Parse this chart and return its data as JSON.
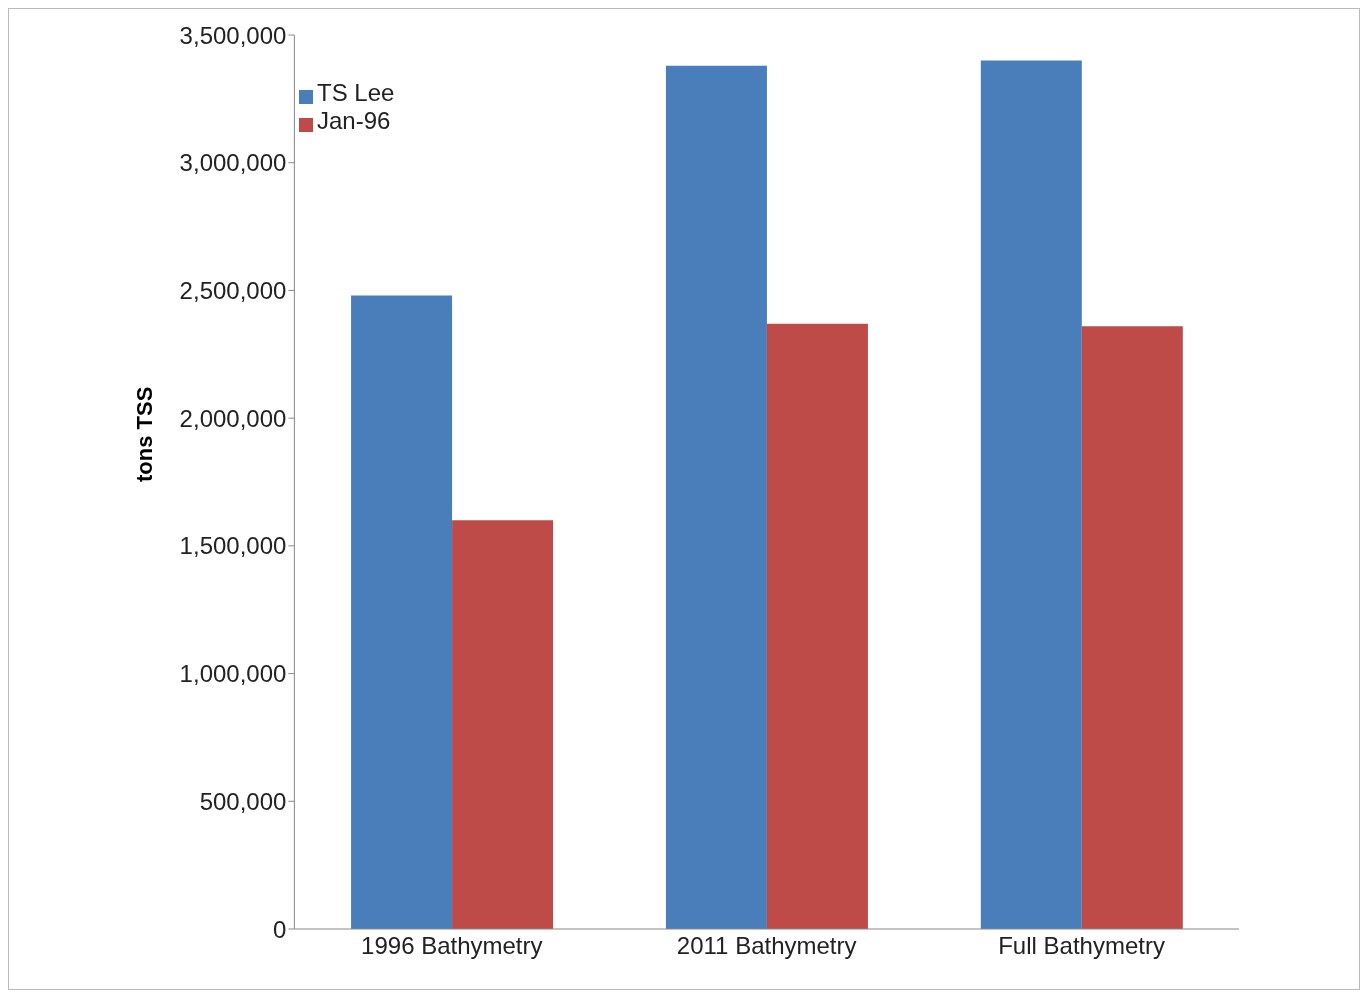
{
  "chart_data": {
    "type": "bar",
    "ylabel": "tons TSS",
    "categories": [
      "1996 Bathymetry",
      "2011 Bathymetry",
      "Full Bathymetry"
    ],
    "series": [
      {
        "name": "TS Lee",
        "color": "#4a7ebb",
        "values": [
          2480000,
          3380000,
          3400000
        ]
      },
      {
        "name": "Jan-96",
        "color": "#be4b48",
        "values": [
          1600000,
          2370000,
          2360000
        ]
      }
    ],
    "ylim": [
      0,
      3500000
    ],
    "yticks": [
      0,
      {
        "value": 500000,
        "label": "500,000"
      },
      {
        "value": 1000000,
        "label": "1,000,000"
      },
      {
        "value": 1500000,
        "label": "1,500,000"
      },
      {
        "value": 2000000,
        "label": "2,000,000"
      },
      {
        "value": 2500000,
        "label": "2,500,000"
      },
      {
        "value": 3000000,
        "label": "3,000,000"
      },
      {
        "value": 3500000,
        "label": "3,500,000"
      }
    ],
    "grid": false,
    "legend": "top left"
  }
}
